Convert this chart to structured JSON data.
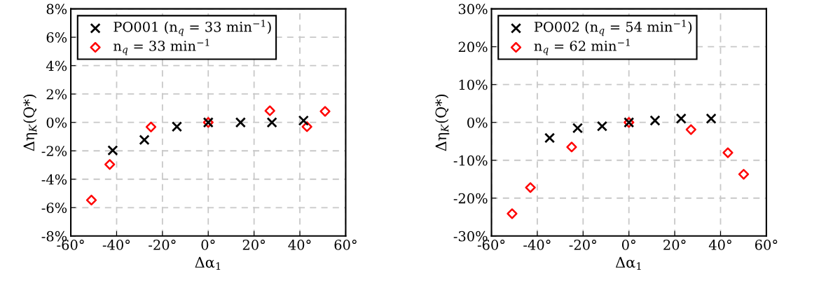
{
  "chart_data": [
    {
      "type": "scatter",
      "xlabel": "Δα$_{1}$",
      "ylabel": "Δη$_{K}$(Q*)",
      "xlim": [
        -60,
        60
      ],
      "ylim": [
        -8,
        8
      ],
      "xticks": [
        {
          "value": -60,
          "label": "-60°"
        },
        {
          "value": -40,
          "label": "-40°"
        },
        {
          "value": -20,
          "label": "-20°"
        },
        {
          "value": 0,
          "label": "0°"
        },
        {
          "value": 20,
          "label": "20°"
        },
        {
          "value": 40,
          "label": "40°"
        },
        {
          "value": 60,
          "label": "60°"
        }
      ],
      "yticks": [
        {
          "value": -8,
          "label": "-8%"
        },
        {
          "value": -6,
          "label": "-6%"
        },
        {
          "value": -4,
          "label": "-4%"
        },
        {
          "value": -2,
          "label": "-2%"
        },
        {
          "value": 0,
          "label": "0%"
        },
        {
          "value": 2,
          "label": "2%"
        },
        {
          "value": 4,
          "label": "4%"
        },
        {
          "value": 6,
          "label": "6%"
        },
        {
          "value": 8,
          "label": "8%"
        }
      ],
      "grid": true,
      "legend": "top left",
      "series": [
        {
          "name": "PO001 (n$_{q}$ = 33 min$^{−1}$)",
          "color": "#000000",
          "marker": "cross",
          "x": [
            -41.7,
            -27.9,
            -13.7,
            0,
            14.1,
            27.8,
            41.6
          ],
          "values": [
            -1.97,
            -1.23,
            -0.3,
            0,
            0,
            0,
            0.13
          ]
        },
        {
          "name": "n$_{q}$ = 33 min$^{−1}$",
          "color": "#ff0000",
          "marker": "diamond",
          "x": [
            -51.0,
            -43.0,
            -25.0,
            0,
            26.9,
            43.1,
            51.0
          ],
          "values": [
            -5.47,
            -2.96,
            -0.32,
            0,
            0.82,
            -0.3,
            0.78
          ]
        }
      ]
    },
    {
      "type": "scatter",
      "xlabel": "Δα$_{1}$",
      "ylabel": "Δη$_{K}$(Q*)",
      "xlim": [
        -60,
        60
      ],
      "ylim": [
        -30,
        30
      ],
      "xticks": [
        {
          "value": -60,
          "label": "-60°"
        },
        {
          "value": -40,
          "label": "-40°"
        },
        {
          "value": -20,
          "label": "-20°"
        },
        {
          "value": 0,
          "label": "0°"
        },
        {
          "value": 20,
          "label": "20°"
        },
        {
          "value": 40,
          "label": "40°"
        },
        {
          "value": 60,
          "label": "60°"
        }
      ],
      "yticks": [
        {
          "value": -30,
          "label": "-30%"
        },
        {
          "value": -20,
          "label": "-20%"
        },
        {
          "value": -10,
          "label": "-10%"
        },
        {
          "value": 0,
          "label": "0%"
        },
        {
          "value": 10,
          "label": "10%"
        },
        {
          "value": 20,
          "label": "20%"
        },
        {
          "value": 30,
          "label": "30%"
        }
      ],
      "grid": true,
      "legend": "top left",
      "series": [
        {
          "name": "PO002 (n$_{q}$ = 54 min$^{−1}$)",
          "color": "#000000",
          "marker": "cross",
          "x": [
            -34.6,
            -22.4,
            -11.7,
            0,
            11.4,
            22.8,
            35.9
          ],
          "values": [
            -4.1,
            -1.5,
            -1.0,
            0,
            0.5,
            1.0,
            1.0
          ]
        },
        {
          "name": "n$_{q}$ = 62 min$^{−1}$",
          "color": "#ff0000",
          "marker": "diamond",
          "x": [
            -51.0,
            -43.0,
            -25.0,
            0,
            27.1,
            43.2,
            50.1
          ],
          "values": [
            -24.1,
            -17.2,
            -6.5,
            0,
            -1.9,
            -8.0,
            -13.7
          ]
        }
      ]
    }
  ]
}
